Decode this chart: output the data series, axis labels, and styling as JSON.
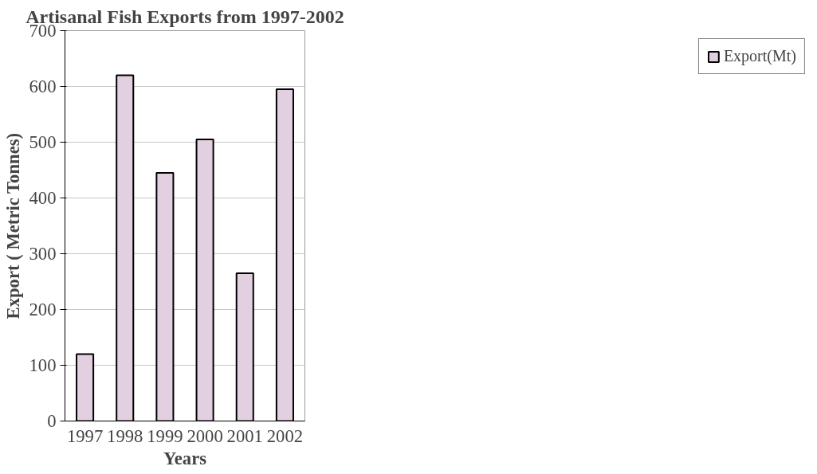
{
  "chart_data": {
    "type": "bar",
    "title": "Artisanal Fish Exports from 1997-2002",
    "xlabel": "Years",
    "ylabel": "Export ( Metric Tonnes)",
    "categories": [
      "1997",
      "1998",
      "1999",
      "2000",
      "2001",
      "2002"
    ],
    "series": [
      {
        "name": "Export(Mt)",
        "color": "#e2cfe0",
        "values": [
          120,
          620,
          445,
          505,
          265,
          595
        ]
      }
    ],
    "ylim": [
      0,
      700
    ],
    "yticks": [
      0,
      100,
      200,
      300,
      400,
      500,
      600,
      700
    ],
    "grid": "y",
    "legend": "right"
  }
}
